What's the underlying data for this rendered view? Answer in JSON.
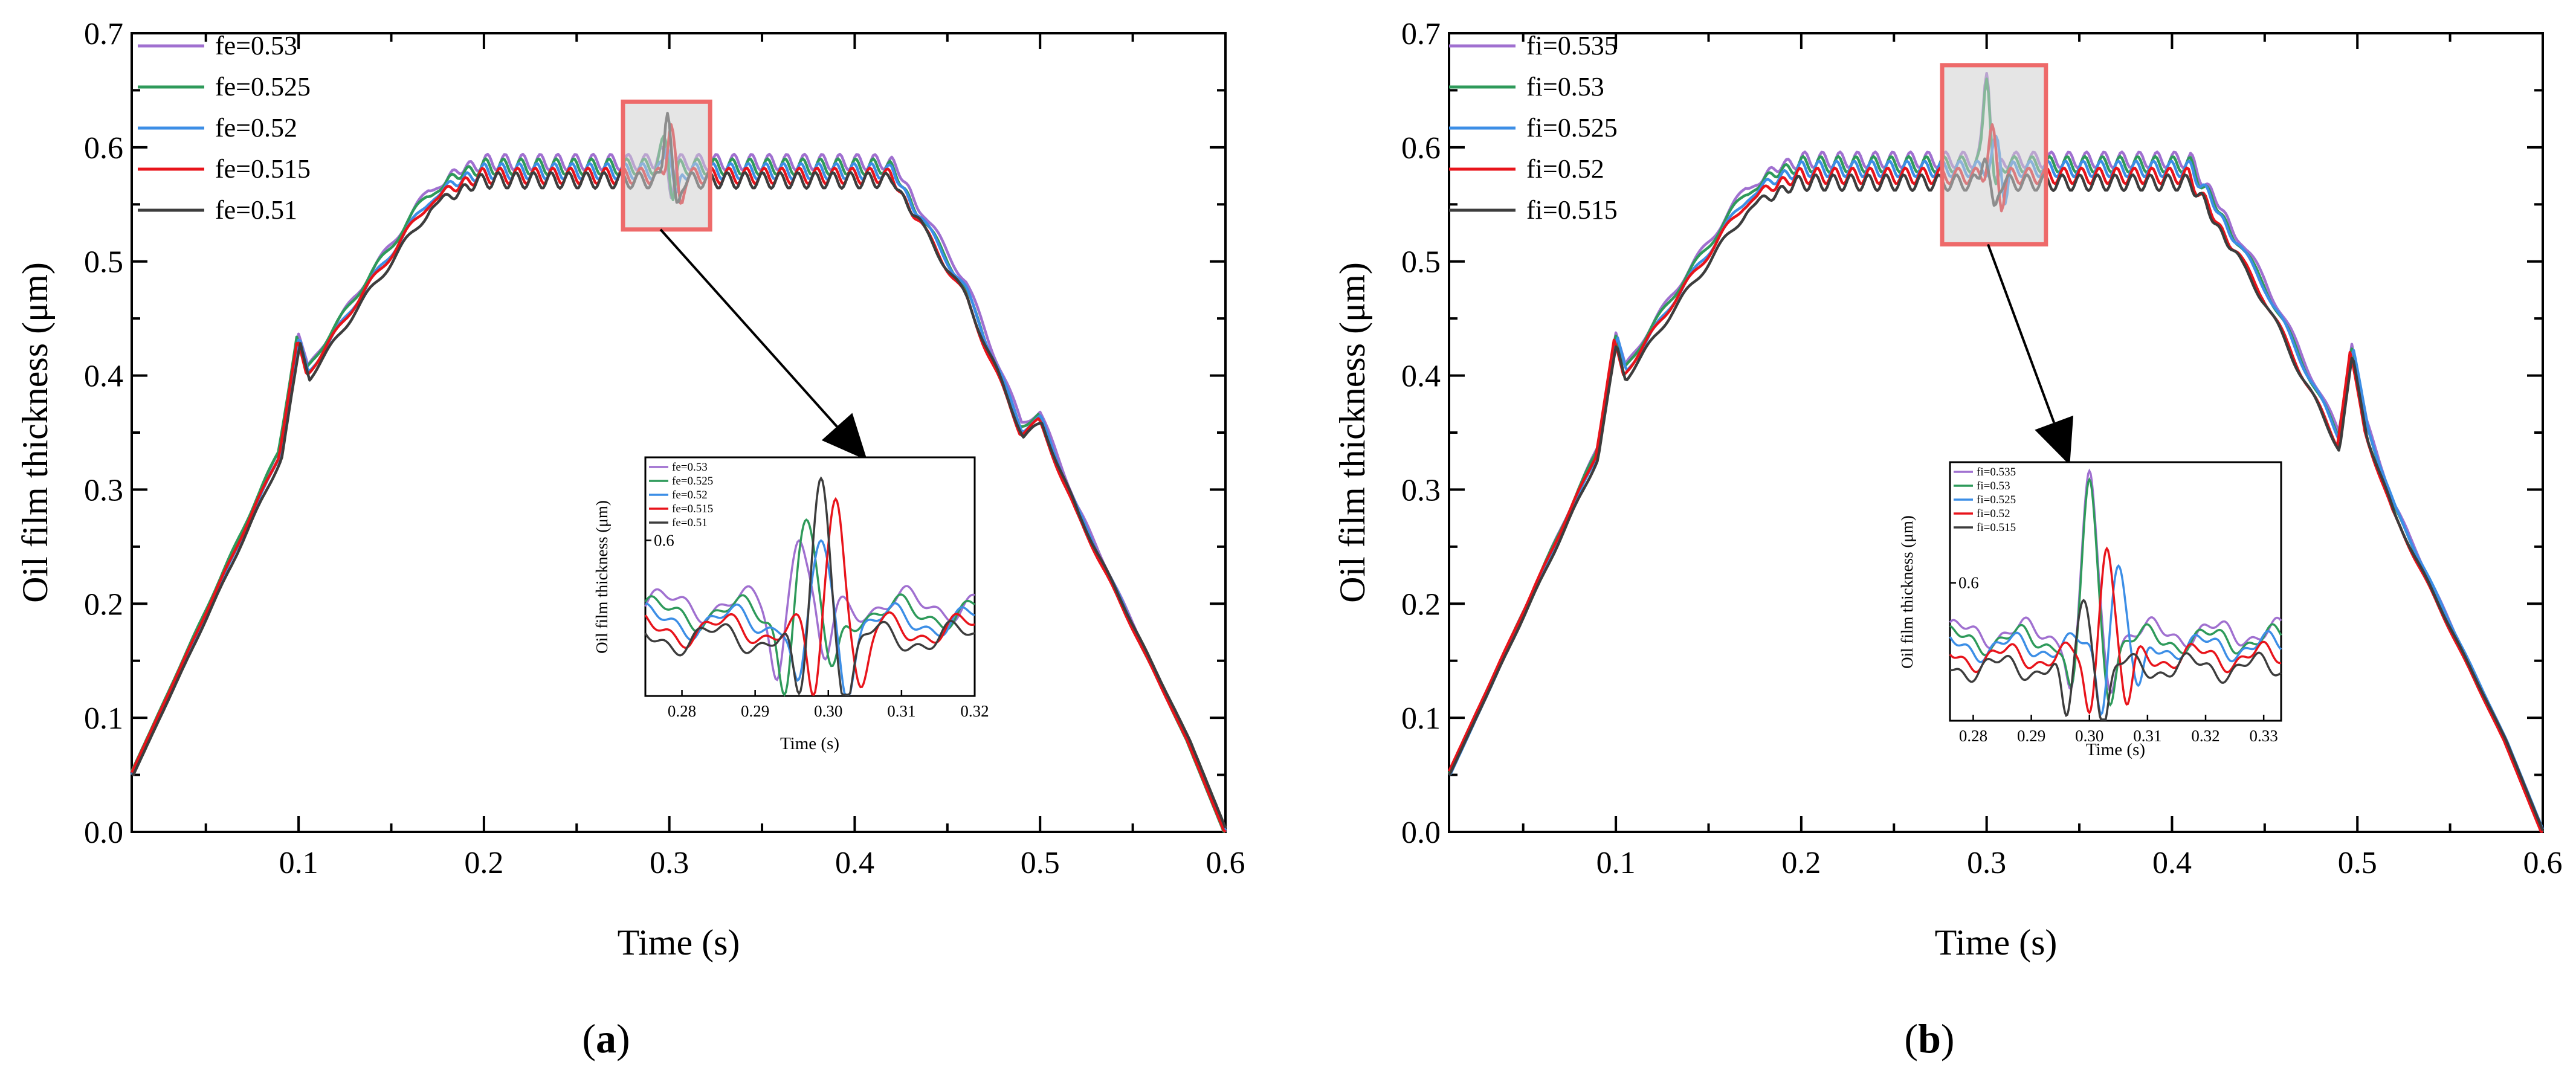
{
  "figure": {
    "panels": [
      {
        "label_open": "(",
        "label_letter": "a",
        "label_close": ")",
        "xlabel": "Time (s)",
        "ylabel": "Oil film thickness (μm)",
        "x_ticks": [
          "0.1",
          "0.2",
          "0.3",
          "0.4",
          "0.5",
          "0.6"
        ],
        "y_ticks": [
          "0.0",
          "0.1",
          "0.2",
          "0.3",
          "0.4",
          "0.5",
          "0.6",
          "0.7"
        ],
        "legend": [
          "fe=0.53",
          "fe=0.525",
          "fe=0.52",
          "fe=0.515",
          "fe=0.51"
        ],
        "inset_xlabel": "Time (s)",
        "inset_ylabel": "Oil film thickness (μm)",
        "inset_x_ticks": [
          "0.28",
          "0.29",
          "0.30",
          "0.31",
          "0.32"
        ],
        "inset_y_ticks": [
          "0.6"
        ]
      },
      {
        "label_open": "(",
        "label_letter": "b",
        "label_close": ")",
        "xlabel": "Time (s)",
        "ylabel": "Oil film thickness (μm)",
        "x_ticks": [
          "0.1",
          "0.2",
          "0.3",
          "0.4",
          "0.5",
          "0.6"
        ],
        "y_ticks": [
          "0.0",
          "0.1",
          "0.2",
          "0.3",
          "0.4",
          "0.5",
          "0.6",
          "0.7"
        ],
        "legend": [
          "fi=0.535",
          "fi=0.53",
          "fi=0.525",
          "fi=0.52",
          "fi=0.515"
        ],
        "inset_xlabel": "Time (s)",
        "inset_ylabel": "Oil film thickness (μm)",
        "inset_x_ticks": [
          "0.28",
          "0.29",
          "0.30",
          "0.31",
          "0.32",
          "0.33"
        ],
        "inset_y_ticks": [
          "0.6"
        ]
      }
    ]
  },
  "chart_data": [
    {
      "type": "line",
      "title": "",
      "xlabel": "Time (s)",
      "ylabel": "Oil film thickness (μm)",
      "xlim": [
        0.01,
        0.6
      ],
      "ylim": [
        0,
        0.7
      ],
      "grid": false,
      "legend_position": "top-left",
      "series": [
        {
          "name": "fe=0.53",
          "color": "#a070d0",
          "offset": 0.012,
          "shift": 0.0,
          "phase": 0.0
        },
        {
          "name": "fe=0.525",
          "color": "#2e9a5a",
          "offset": 0.008,
          "shift": 0.003,
          "phase": 0.6
        },
        {
          "name": "fe=0.52",
          "color": "#3c8ee6",
          "offset": 0.004,
          "shift": -0.001,
          "phase": 1.2
        },
        {
          "name": "fe=0.515",
          "color": "#e8141b",
          "offset": 0.0,
          "shift": 0.002,
          "phase": 1.8
        },
        {
          "name": "fe=0.51",
          "color": "#3d3d3d",
          "offset": -0.004,
          "shift": -0.003,
          "phase": 2.4
        }
      ],
      "profile": [
        [
          0.01,
          0.05
        ],
        [
          0.09,
          0.33
        ],
        [
          0.1,
          0.43
        ],
        [
          0.105,
          0.4
        ],
        [
          0.13,
          0.46
        ],
        [
          0.17,
          0.55
        ],
        [
          0.19,
          0.57
        ],
        [
          0.2,
          0.575
        ],
        [
          0.42,
          0.575
        ],
        [
          0.46,
          0.47
        ],
        [
          0.49,
          0.35
        ],
        [
          0.5,
          0.36
        ],
        [
          0.52,
          0.28
        ],
        [
          0.58,
          0.08
        ],
        [
          0.6,
          0.0
        ]
      ],
      "highlight_box": {
        "x": [
          0.275,
          0.322
        ],
        "y": [
          0.528,
          0.64
        ]
      },
      "inset": {
        "xlim": [
          0.275,
          0.32
        ],
        "ylim": [
          0.525,
          0.64
        ],
        "peak_times": [
          0.296,
          0.297,
          0.299,
          0.301,
          0.299
        ],
        "peak_values": [
          0.6,
          0.61,
          0.6,
          0.62,
          0.63
        ]
      }
    },
    {
      "type": "line",
      "title": "",
      "xlabel": "Time (s)",
      "ylabel": "Oil film thickness (μm)",
      "xlim": [
        0.01,
        0.6
      ],
      "ylim": [
        0,
        0.7
      ],
      "grid": false,
      "legend_position": "top-left",
      "series": [
        {
          "name": "fi=0.535",
          "color": "#a070d0",
          "offset": 0.014,
          "shift": 0.0,
          "phase": 0.0
        },
        {
          "name": "fi=0.53",
          "color": "#2e9a5a",
          "offset": 0.01,
          "shift": 0.001,
          "phase": 0.6
        },
        {
          "name": "fi=0.525",
          "color": "#3c8ee6",
          "offset": 0.006,
          "shift": -0.002,
          "phase": 1.2
        },
        {
          "name": "fi=0.52",
          "color": "#e8141b",
          "offset": 0.0,
          "shift": 0.003,
          "phase": 1.8
        },
        {
          "name": "fi=0.515",
          "color": "#3d3d3d",
          "offset": -0.006,
          "shift": -0.001,
          "phase": 2.4
        }
      ],
      "profile": [
        [
          0.01,
          0.05
        ],
        [
          0.09,
          0.33
        ],
        [
          0.1,
          0.43
        ],
        [
          0.105,
          0.4
        ],
        [
          0.13,
          0.46
        ],
        [
          0.17,
          0.55
        ],
        [
          0.19,
          0.57
        ],
        [
          0.2,
          0.575
        ],
        [
          0.41,
          0.575
        ],
        [
          0.45,
          0.47
        ],
        [
          0.49,
          0.34
        ],
        [
          0.497,
          0.42
        ],
        [
          0.505,
          0.35
        ],
        [
          0.52,
          0.28
        ],
        [
          0.58,
          0.08
        ],
        [
          0.6,
          0.0
        ]
      ],
      "highlight_box": {
        "x": [
          0.276,
          0.332
        ],
        "y": [
          0.515,
          0.672
        ]
      },
      "inset": {
        "xlim": [
          0.276,
          0.333
        ],
        "ylim": [
          0.52,
          0.67
        ],
        "peak_times": [
          0.3,
          0.3,
          0.305,
          0.303,
          0.299
        ],
        "peak_values": [
          0.665,
          0.66,
          0.61,
          0.62,
          0.59
        ]
      }
    }
  ]
}
